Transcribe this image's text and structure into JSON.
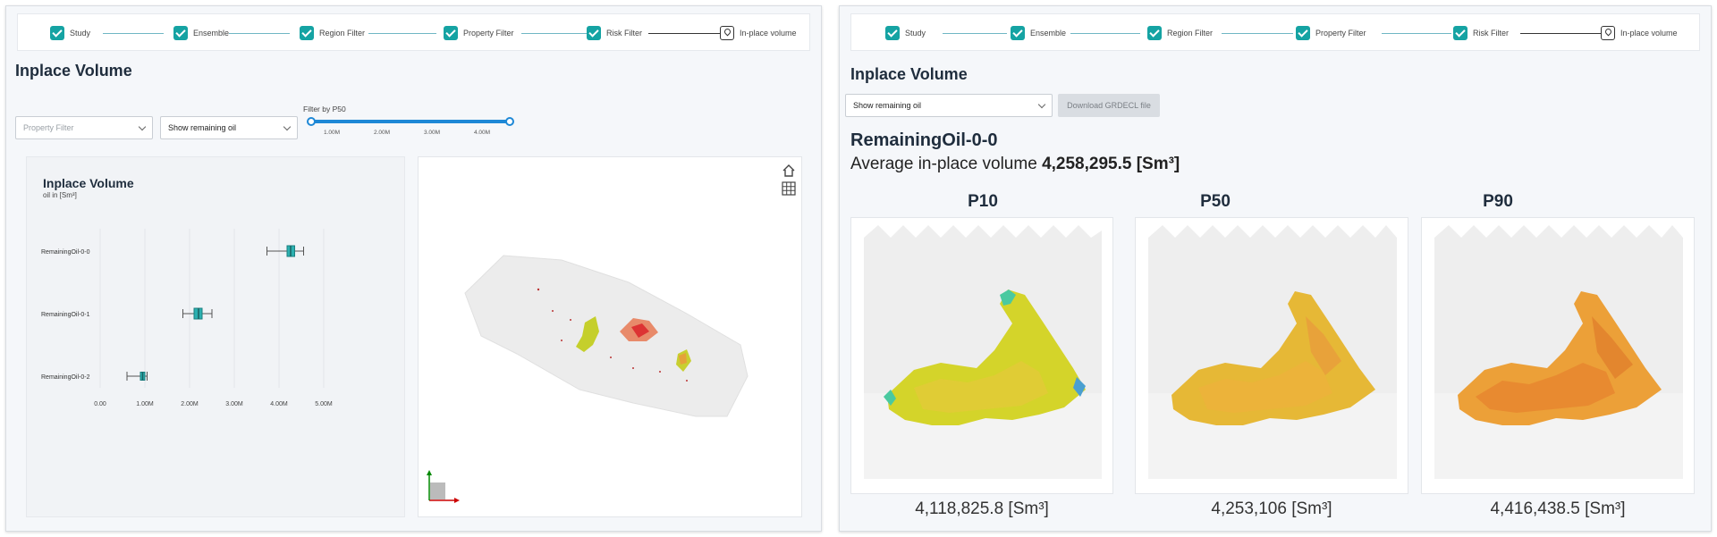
{
  "left": {
    "stepper": [
      {
        "label": "Study",
        "done": true
      },
      {
        "label": "Ensemble",
        "done": true
      },
      {
        "label": "Region Filter",
        "done": true
      },
      {
        "label": "Property Filter",
        "done": true
      },
      {
        "label": "Risk Filter",
        "done": true
      },
      {
        "label": "In-place volume",
        "done": false
      }
    ],
    "title": "Inplace Volume",
    "property_filter_placeholder": "Property Filter",
    "show_select_value": "Show remaining oil",
    "slider_label": "Filter by P50",
    "slider_ticks": [
      "1.00M",
      "2.00M",
      "3.00M",
      "4.00M"
    ],
    "chart_title": "Inplace Volume",
    "chart_subtitle": "oil in [Sm³]",
    "chart_data": {
      "type": "box",
      "title": "Inplace Volume",
      "subtitle": "oil in [Sm³]",
      "categories": [
        "RemainingOil-0-0",
        "RemainingOil-0-1",
        "RemainingOil-0-2"
      ],
      "boxes": [
        {
          "name": "RemainingOil-0-0",
          "min": 3.73,
          "q1": 4.18,
          "median": 4.26,
          "q3": 4.35,
          "max": 4.55
        },
        {
          "name": "RemainingOil-0-1",
          "min": 1.85,
          "q1": 2.1,
          "median": 2.2,
          "q3": 2.28,
          "max": 2.5
        },
        {
          "name": "RemainingOil-0-2",
          "min": 0.6,
          "q1": 0.9,
          "median": 0.95,
          "q3": 1.0,
          "max": 1.05
        }
      ],
      "xticks": [
        "0.00",
        "1.00M",
        "2.00M",
        "3.00M",
        "4.00M",
        "5.00M"
      ],
      "xlim": [
        0,
        5
      ],
      "box_color": "#2bb0b0"
    }
  },
  "right": {
    "stepper": [
      {
        "label": "Study",
        "done": true
      },
      {
        "label": "Ensemble",
        "done": true
      },
      {
        "label": "Region Filter",
        "done": true
      },
      {
        "label": "Property Filter",
        "done": true
      },
      {
        "label": "Risk Filter",
        "done": true
      },
      {
        "label": "In-place volume",
        "done": false
      }
    ],
    "title": "Inplace Volume",
    "show_select_value": "Show remaining oil",
    "download_label": "Download GRDECL file",
    "case_name": "RemainingOil-0-0",
    "avg_prefix": "Average in-place volume",
    "avg_value": "4,258,295.5 [Sm³]",
    "percentiles": [
      {
        "label": "P10",
        "value": "4,118,825.8 [Sm³]"
      },
      {
        "label": "P50",
        "value": "4,253,106 [Sm³]"
      },
      {
        "label": "P90",
        "value": "4,416,438.5 [Sm³]"
      }
    ]
  },
  "colors": {
    "accent": "#15a3a3",
    "slider": "#1e88d6",
    "map_yellow": "#d8d832",
    "map_orange": "#e8a23a"
  }
}
